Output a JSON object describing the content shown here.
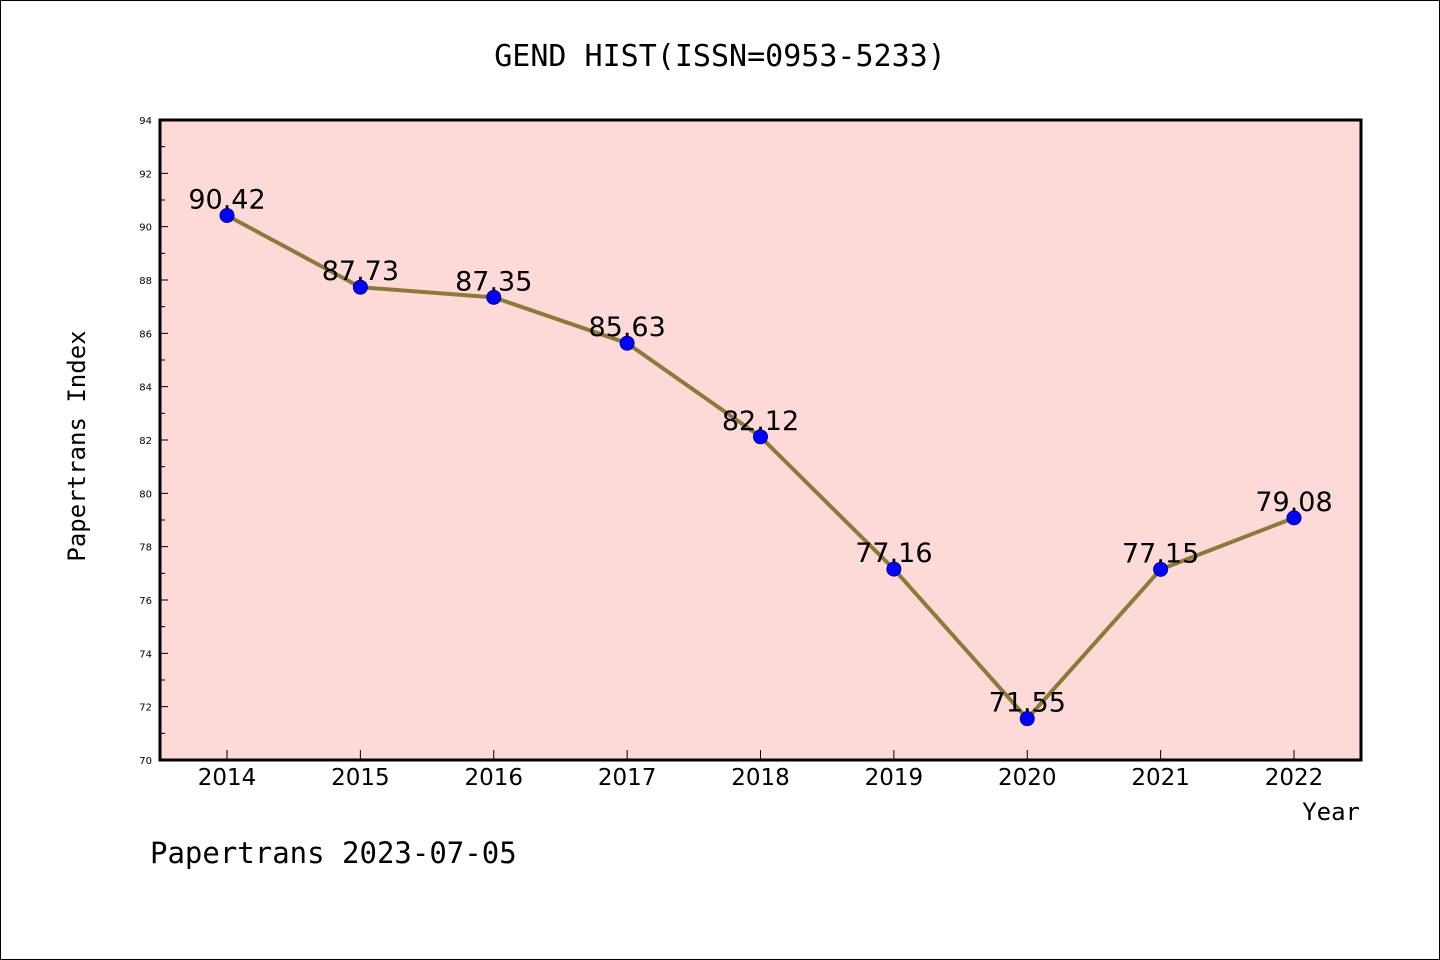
{
  "chart_data": {
    "type": "line",
    "title": "GEND HIST(ISSN=0953-5233)",
    "xlabel": "Year",
    "ylabel": "Papertrans Index",
    "footer": "Papertrans 2023-07-05",
    "x": [
      "2014",
      "2015",
      "2016",
      "2017",
      "2018",
      "2019",
      "2020",
      "2021",
      "2022"
    ],
    "values": [
      90.42,
      87.73,
      87.35,
      85.63,
      82.12,
      77.16,
      71.55,
      77.15,
      79.08
    ],
    "data_labels": [
      "90.42",
      "87.73",
      "87.35",
      "85.63",
      "82.12",
      "77.16",
      "71.55",
      "77.15",
      "79.08"
    ],
    "ylim": [
      70,
      94
    ],
    "yticks": [
      "70",
      "72",
      "74",
      "76",
      "78",
      "80",
      "82",
      "84",
      "86",
      "88",
      "90",
      "92",
      "94"
    ],
    "grid": false,
    "colors": {
      "plot_background": "#fddad8",
      "line": "#8b7a3a",
      "marker": "#0000ff"
    }
  }
}
